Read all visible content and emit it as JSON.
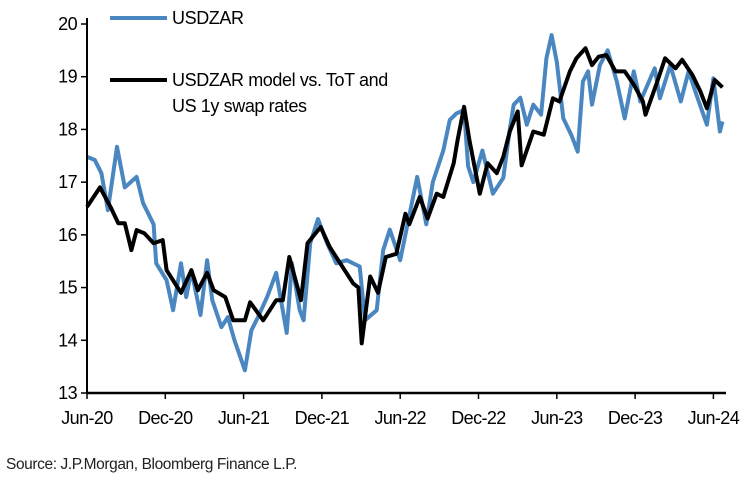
{
  "chart_data": {
    "type": "line",
    "title": "",
    "xlabel": "",
    "ylabel": "",
    "x_unit": "months since Jun-20",
    "xlim": [
      0,
      49.5
    ],
    "ylim": [
      13,
      20
    ],
    "yticks": [
      13,
      14,
      15,
      16,
      17,
      18,
      19,
      20
    ],
    "xticks": [
      0,
      6,
      12,
      18,
      24,
      30,
      36,
      42,
      48
    ],
    "xtick_labels": [
      "Jun-20",
      "Dec-20",
      "Jun-21",
      "Dec-21",
      "Jun-22",
      "Dec-22",
      "Jun-23",
      "Dec-23",
      "Jun-24"
    ],
    "grid": false,
    "legend_position": "top-left",
    "series": [
      {
        "name": "USDZAR",
        "color": "#4a86c0",
        "x": [
          0,
          0.6,
          1.1,
          1.6,
          2.3,
          2.9,
          3.8,
          4.3,
          5.1,
          5.3,
          6.1,
          6.6,
          7.2,
          7.6,
          8.0,
          8.7,
          9.2,
          9.6,
          10.3,
          10.8,
          11.3,
          12.1,
          12.6,
          13.1,
          13.8,
          14.5,
          15.3,
          15.7,
          16.3,
          16.6,
          17.1,
          17.7,
          18.4,
          19.1,
          19.9,
          20.9,
          21.3,
          22.2,
          22.7,
          23.2,
          24.0,
          25.3,
          26.0,
          26.5,
          27.3,
          27.8,
          28.3,
          28.9,
          29.2,
          29.6,
          30.3,
          31.1,
          31.9,
          32.4,
          32.7,
          33.2,
          33.7,
          34.2,
          34.8,
          35.2,
          35.6,
          36.0,
          36.5,
          37.1,
          37.6,
          38.0,
          38.4,
          38.7,
          39.3,
          39.9,
          40.6,
          41.2,
          41.9,
          42.4,
          43.5,
          43.9,
          44.7,
          45.5,
          46.1,
          46.7,
          47.5,
          48.0,
          48.5,
          48.7
        ],
        "values": [
          17.48,
          17.42,
          17.17,
          16.47,
          17.67,
          16.9,
          17.1,
          16.6,
          16.2,
          15.46,
          15.14,
          14.57,
          15.46,
          14.82,
          15.33,
          14.48,
          15.52,
          14.76,
          14.25,
          14.44,
          14.0,
          13.43,
          14.19,
          14.44,
          14.82,
          15.28,
          14.14,
          15.46,
          14.57,
          14.38,
          15.84,
          16.3,
          15.84,
          15.46,
          15.52,
          15.4,
          14.38,
          14.57,
          15.71,
          16.1,
          15.52,
          17.1,
          16.2,
          17.0,
          17.6,
          18.18,
          18.3,
          18.37,
          17.3,
          17.0,
          17.6,
          16.78,
          17.08,
          18.0,
          18.47,
          18.6,
          18.09,
          18.47,
          18.28,
          19.35,
          19.79,
          19.28,
          18.21,
          17.9,
          17.58,
          18.91,
          19.1,
          18.47,
          19.22,
          19.5,
          18.91,
          18.21,
          19.1,
          18.53,
          19.16,
          18.59,
          19.22,
          18.53,
          19.1,
          18.66,
          18.09,
          18.97,
          17.96,
          18.15
        ]
      },
      {
        "name": "USDZAR model vs. ToT and US 1y swap rates",
        "color": "#000000",
        "x": [
          0,
          1.0,
          1.8,
          2.4,
          2.9,
          3.4,
          3.8,
          4.4,
          5.1,
          5.8,
          6.1,
          7.2,
          8.0,
          8.5,
          9.2,
          9.7,
          10.6,
          11.2,
          12.1,
          12.5,
          13.5,
          14.5,
          15.0,
          15.5,
          16.4,
          16.9,
          17.9,
          18.6,
          19.4,
          20.4,
          20.8,
          21.05,
          21.7,
          22.3,
          22.9,
          23.7,
          24.4,
          24.7,
          25.5,
          26.1,
          26.8,
          27.3,
          28.1,
          28.4,
          28.9,
          29.3,
          30.1,
          30.7,
          31.4,
          31.9,
          32.4,
          33.0,
          33.3,
          34.2,
          35.0,
          35.7,
          36.2,
          37.0,
          37.5,
          38.2,
          38.7,
          39.2,
          39.8,
          40.5,
          41.2,
          41.9,
          42.6,
          42.8,
          43.7,
          44.3,
          45.1,
          45.6,
          46.4,
          47.0,
          47.5,
          48.1,
          48.7
        ],
        "values": [
          16.53,
          16.9,
          16.53,
          16.22,
          16.22,
          15.71,
          16.09,
          16.03,
          15.84,
          15.9,
          15.33,
          14.9,
          15.33,
          14.95,
          15.28,
          14.95,
          14.82,
          14.38,
          14.38,
          14.72,
          14.38,
          14.76,
          14.76,
          15.58,
          14.76,
          15.84,
          16.15,
          15.77,
          15.46,
          15.08,
          15.0,
          13.94,
          15.21,
          14.9,
          15.58,
          15.64,
          16.4,
          16.2,
          16.72,
          16.31,
          16.78,
          16.72,
          17.36,
          17.8,
          18.43,
          17.8,
          16.78,
          17.36,
          17.17,
          17.48,
          17.96,
          18.34,
          17.32,
          17.96,
          17.9,
          18.59,
          18.53,
          19.1,
          19.35,
          19.54,
          19.22,
          19.38,
          19.41,
          19.1,
          19.1,
          18.85,
          18.53,
          18.28,
          18.91,
          19.35,
          19.16,
          19.32,
          19.03,
          18.72,
          18.4,
          18.94,
          18.8
        ]
      }
    ],
    "legend": [
      "USDZAR",
      "USDZAR model vs. ToT and",
      "US 1y swap rates"
    ]
  },
  "source": "Source: J.P.Morgan, Bloomberg Finance L.P."
}
